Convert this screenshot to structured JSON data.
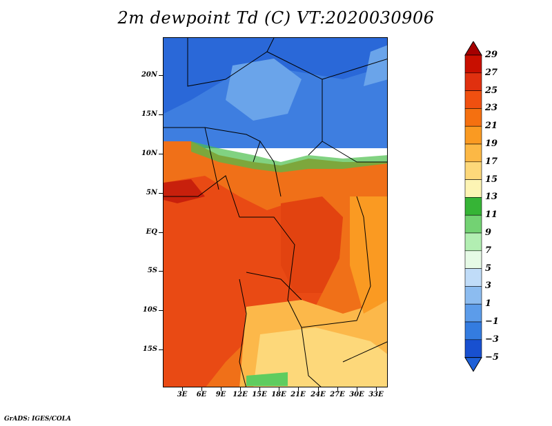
{
  "title": "2m dewpoint Td (C) VT:2020030906",
  "footer": "GrADS: IGES/COLA",
  "lat_labels": [
    "20N",
    "15N",
    "10N",
    "5N",
    "EQ",
    "5S",
    "10S",
    "15S"
  ],
  "lon_labels": [
    "3E",
    "6E",
    "9E",
    "12E",
    "15E",
    "18E",
    "21E",
    "24E",
    "27E",
    "30E",
    "33E"
  ],
  "colorbar": {
    "labels": [
      "29",
      "27",
      "25",
      "23",
      "21",
      "19",
      "17",
      "15",
      "13",
      "11",
      "9",
      "7",
      "5",
      "3",
      "1",
      "−1",
      "−3",
      "−5"
    ],
    "colors": [
      "#a50000",
      "#c80f00",
      "#e0300f",
      "#f05010",
      "#f57010",
      "#fa9a22",
      "#fcb845",
      "#fdd87a",
      "#fdf4b4",
      "#36b436",
      "#73d273",
      "#b2eeb2",
      "#e6fae6",
      "#c0dcf8",
      "#8cbcf0",
      "#5c9cea",
      "#347ce0",
      "#1850d0",
      "#1e60d8"
    ]
  }
}
